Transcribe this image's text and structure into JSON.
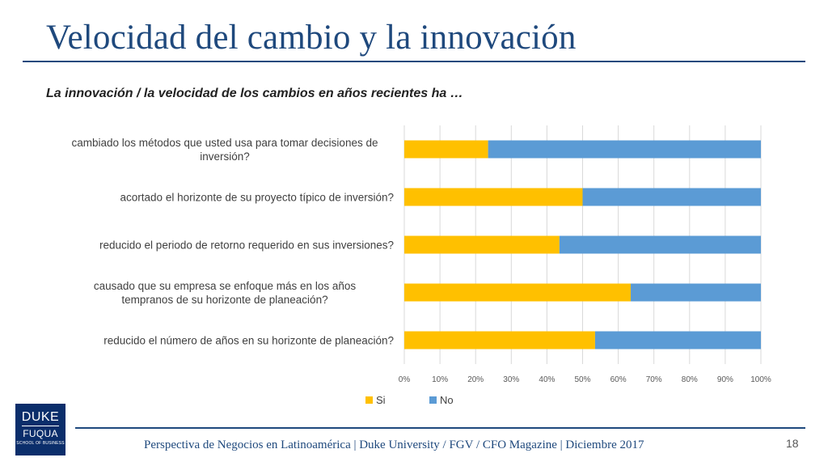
{
  "header": {
    "title": "Velocidad del cambio y la innovación",
    "subtitle": "La innovación / la velocidad de los cambios en años recientes ha …"
  },
  "footer": {
    "text": "Perspectiva de Negocios en Latinoamérica | Duke University / FGV / CFO Magazine | Diciembre 2017",
    "page_number": "18"
  },
  "logo": {
    "line1": "DUKE",
    "line2": "FUQUA",
    "line3": "SCHOOL OF BUSINESS"
  },
  "colors": {
    "si": "#ffc000",
    "no": "#5b9bd5",
    "title": "#1f497d",
    "grid": "#d9d9d9"
  },
  "chart_data": {
    "type": "bar",
    "orientation": "horizontal",
    "stacked": "percent",
    "categories": [
      [
        "cambiado los métodos que usted usa para tomar decisiones de",
        "inversión?"
      ],
      [
        "acortado el horizonte de su proyecto típico de inversión?"
      ],
      [
        "reducido el periodo de retorno requerido en sus inversiones?"
      ],
      [
        "causado que su empresa se enfoque más en los años",
        "tempranos de su horizonte de planeación?"
      ],
      [
        "reducido el número de años en su horizonte de planeación?"
      ]
    ],
    "series": [
      {
        "name": "Si",
        "values": [
          23.5,
          50,
          43.5,
          63.5,
          53.5
        ]
      },
      {
        "name": "No",
        "values": [
          76.5,
          50,
          56.5,
          36.5,
          46.5
        ]
      }
    ],
    "xlim": [
      0,
      100
    ],
    "xticks": [
      "0%",
      "10%",
      "20%",
      "30%",
      "40%",
      "50%",
      "60%",
      "70%",
      "80%",
      "90%",
      "100%"
    ],
    "grid": true,
    "legend_position": "bottom"
  }
}
